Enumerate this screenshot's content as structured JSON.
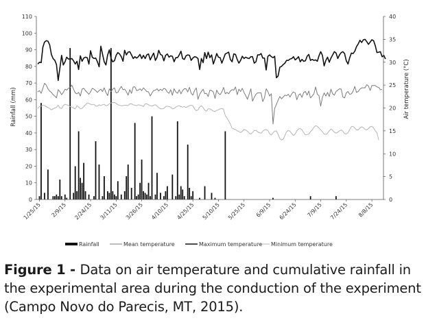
{
  "chart_data": {
    "type": "bar+line",
    "title": "",
    "xlabel": "",
    "ylabel_left": "Rainfall (mm)",
    "ylabel_right": "Air temperature (°C)",
    "ylim_left": [
      0,
      110
    ],
    "ylim_right": [
      0,
      40
    ],
    "yticks_left": [
      "0",
      "10",
      "20",
      "30",
      "40",
      "50",
      "60",
      "70",
      "80",
      "90",
      "100",
      "110"
    ],
    "yticks_right": [
      "0",
      "5",
      "10",
      "15",
      "20",
      "25",
      "30",
      "35",
      "40"
    ],
    "x_tick_labels": [
      "1/25/15",
      "2/9/15",
      "2/24/15",
      "3/11/15",
      "3/26/15",
      "4/10/15",
      "4/25/15",
      "5/10/15",
      "5/25/15",
      "6/9/15",
      "6/24/15",
      "7/9/15",
      "7/24/15",
      "8/8/15"
    ],
    "x_start": "1/25/15",
    "n_days": 203,
    "rainfall": {
      "name": "Rainfall",
      "values": [
        [
          1,
          2
        ],
        [
          2,
          58
        ],
        [
          4,
          4
        ],
        [
          6,
          18
        ],
        [
          9,
          2
        ],
        [
          10,
          2
        ],
        [
          11,
          3
        ],
        [
          12,
          2
        ],
        [
          13,
          12
        ],
        [
          14,
          2
        ],
        [
          16,
          3
        ],
        [
          17,
          1
        ],
        [
          19,
          91
        ],
        [
          21,
          4
        ],
        [
          22,
          20
        ],
        [
          23,
          5
        ],
        [
          24,
          41
        ],
        [
          25,
          13
        ],
        [
          26,
          10
        ],
        [
          27,
          22
        ],
        [
          28,
          5
        ],
        [
          30,
          3
        ],
        [
          33,
          2
        ],
        [
          34,
          35
        ],
        [
          36,
          21
        ],
        [
          38,
          2
        ],
        [
          39,
          14
        ],
        [
          41,
          5
        ],
        [
          42,
          4
        ],
        [
          43,
          91
        ],
        [
          44,
          5
        ],
        [
          45,
          3
        ],
        [
          46,
          2
        ],
        [
          47,
          11
        ],
        [
          49,
          3
        ],
        [
          51,
          5
        ],
        [
          52,
          14
        ],
        [
          53,
          21
        ],
        [
          55,
          7
        ],
        [
          57,
          46
        ],
        [
          58,
          2
        ],
        [
          59,
          3
        ],
        [
          60,
          10
        ],
        [
          61,
          24
        ],
        [
          62,
          5
        ],
        [
          63,
          4
        ],
        [
          64,
          3
        ],
        [
          65,
          10
        ],
        [
          66,
          2
        ],
        [
          67,
          50
        ],
        [
          69,
          3
        ],
        [
          70,
          16
        ],
        [
          72,
          4
        ],
        [
          74,
          2
        ],
        [
          75,
          5
        ],
        [
          76,
          8
        ],
        [
          79,
          15
        ],
        [
          81,
          2
        ],
        [
          82,
          47
        ],
        [
          83,
          3
        ],
        [
          84,
          8
        ],
        [
          85,
          6
        ],
        [
          86,
          2
        ],
        [
          88,
          33
        ],
        [
          89,
          7
        ],
        [
          90,
          2
        ],
        [
          91,
          5
        ],
        [
          95,
          1
        ],
        [
          98,
          8
        ],
        [
          102,
          4
        ],
        [
          104,
          1
        ],
        [
          110,
          41
        ],
        [
          138,
          1
        ],
        [
          160,
          2
        ],
        [
          175,
          2
        ]
      ]
    },
    "series": [
      {
        "name": "Mean temperature",
        "axis": "right",
        "color": "#7a7a7a",
        "values": [
          23.5,
          23.8,
          23.2,
          24.3,
          25.4,
          25.0,
          24.2,
          23.7,
          23.4,
          22.9,
          22.6,
          22.2,
          24.0,
          23.6,
          22.9,
          23.4,
          24.1,
          23.9,
          24.3,
          24.5,
          25.0,
          24.1,
          23.3,
          23.1,
          23.4,
          22.6,
          24.1,
          24.3,
          23.8,
          23.4,
          23.0,
          23.5,
          24.3,
          24.1,
          23.8,
          23.4,
          23.8,
          24.1,
          23.6,
          24.4,
          23.4,
          22.7,
          24.2,
          23.6,
          24.1,
          24.4,
          23.3,
          23.4,
          24.1,
          24.7,
          24.0,
          24.1,
          23.6,
          22.8,
          24.0,
          23.2,
          24.6,
          24.6,
          23.8,
          23.9,
          24.2,
          23.8,
          24.4,
          24.0,
          23.6,
          23.5,
          22.6,
          23.3,
          23.8,
          23.9,
          24.2,
          23.7,
          24.1,
          23.8,
          24.3,
          24.1,
          23.5,
          23.2,
          24.0,
          22.8,
          24.2,
          23.5,
          23.2,
          24.0,
          23.1,
          23.8,
          24.2,
          24.2,
          23.5,
          24.5,
          23.2,
          22.8,
          23.8,
          24.4,
          21.9,
          23.0,
          23.6,
          24.1,
          23.1,
          23.2,
          22.5,
          23.9,
          23.8,
          23.5,
          22.1,
          23.9,
          23.2,
          22.9,
          23.5,
          24.5,
          23.1,
          23.4,
          23.1,
          23.7,
          24.0,
          23.9,
          24.6,
          22.9,
          24.1,
          23.6,
          24.3,
          23.4,
          22.7,
          21.9,
          23.0,
          24.2,
          21.5,
          22.3,
          23.0,
          23.3,
          23.3,
          23.3,
          21.4,
          22.2,
          24.2,
          23.6,
          22.6,
          23.1,
          16.5,
          19.9,
          20.8,
          21.7,
          22.5,
          22.0,
          22.4,
          22.8,
          22.7,
          23.0,
          22.4,
          23.1,
          23.5,
          23.3,
          21.8,
          22.8,
          23.1,
          22.3,
          23.4,
          23.6,
          22.8,
          23.7,
          22.2,
          22.6,
          23.1,
          24.6,
          23.0,
          22.7,
          20.4,
          22.3,
          23.3,
          22.6,
          23.4,
          22.5,
          24.1,
          23.1,
          22.8,
          23.6,
          23.9,
          24.2,
          24.1,
          22.4,
          22.2,
          23.3,
          23.6,
          23.0,
          23.1,
          23.7,
          24.7,
          23.4,
          23.6,
          24.1,
          24.4,
          24.4,
          24.4,
          25.1,
          24.8,
          23.8,
          24.9,
          24.9,
          24.9,
          24.6,
          24.5,
          24.0,
          24.0
        ]
      },
      {
        "name": "Maximum temperature",
        "axis": "right",
        "color": "#111111",
        "values": [
          29.6,
          30.0,
          29.9,
          33.3,
          34.4,
          34.7,
          34.6,
          33.8,
          31.7,
          30.8,
          30.4,
          29.5,
          26.0,
          28.7,
          31.5,
          29.4,
          30.1,
          31.1,
          30.7,
          30.7,
          30.8,
          30.3,
          29.6,
          30.2,
          28.4,
          31.4,
          30.2,
          30.9,
          31.1,
          31.0,
          29.6,
          32.5,
          31.1,
          30.8,
          30.9,
          30.1,
          29.0,
          33.5,
          31.8,
          30.1,
          29.4,
          31.6,
          32.7,
          30.8,
          30.1,
          30.3,
          31.5,
          32.1,
          31.8,
          31.2,
          30.2,
          32.6,
          31.6,
          32.2,
          32.3,
          31.6,
          30.8,
          31.2,
          30.9,
          31.2,
          31.7,
          30.8,
          31.5,
          30.8,
          31.6,
          31.8,
          30.5,
          31.3,
          32.0,
          30.4,
          31.1,
          32.6,
          31.7,
          31.5,
          30.3,
          31.5,
          31.8,
          31.1,
          31.4,
          31.3,
          30.1,
          31.0,
          31.0,
          31.6,
          32.4,
          30.8,
          30.6,
          31.4,
          31.6,
          31.5,
          30.4,
          30.9,
          31.2,
          31.1,
          30.8,
          28.4,
          30.8,
          29.9,
          32.1,
          30.8,
          32.2,
          31.0,
          31.6,
          29.6,
          30.7,
          31.9,
          31.1,
          31.0,
          29.8,
          30.8,
          31.8,
          32.0,
          32.2,
          30.6,
          30.1,
          31.8,
          31.7,
          30.6,
          29.8,
          30.4,
          31.3,
          30.8,
          31.1,
          30.9,
          30.8,
          31.2,
          31.2,
          29.8,
          30.1,
          31.6,
          31.6,
          31.9,
          30.9,
          30.9,
          28.3,
          31.3,
          31.6,
          31.2,
          31.0,
          31.3,
          26.6,
          27.0,
          28.9,
          29.1,
          29.5,
          29.8,
          30.4,
          30.4,
          30.7,
          30.8,
          31.2,
          30.5,
          30.8,
          31.2,
          30.1,
          30.6,
          30.2,
          30.3,
          31.3,
          31.7,
          30.4,
          30.6,
          30.4,
          30.5,
          30.2,
          31.4,
          32.3,
          31.5,
          29.2,
          30.4,
          31.1,
          30.0,
          30.9,
          31.6,
          32.3,
          32.0,
          30.8,
          31.6,
          32.1,
          32.3,
          31.9,
          30.3,
          29.6,
          31.0,
          32.0,
          31.9,
          32.4,
          33.4,
          34.0,
          34.8,
          34.3,
          34.9,
          35.0,
          34.5,
          33.9,
          34.4,
          34.9,
          34.7,
          33.6,
          32.1,
          32.2,
          32.3,
          31.2,
          31.5,
          30.7
        ]
      },
      {
        "name": "Minimum temperature",
        "axis": "right",
        "color": "#b4b4b4",
        "values": [
          19.9,
          20.3,
          20.4,
          20.6,
          20.5,
          20.3,
          20.1,
          19.9,
          19.6,
          19.8,
          20.0,
          20.1,
          20.6,
          20.0,
          19.9,
          20.5,
          20.8,
          20.7,
          20.6,
          20.3,
          20.2,
          20.0,
          19.8,
          20.5,
          20.2,
          19.8,
          19.9,
          20.3,
          20.7,
          21.1,
          21.0,
          20.8,
          20.7,
          20.8,
          20.4,
          20.4,
          20.7,
          20.5,
          20.7,
          20.8,
          20.5,
          20.6,
          20.9,
          21.1,
          21.2,
          21.2,
          21.0,
          20.7,
          20.6,
          20.5,
          20.5,
          20.6,
          20.6,
          20.5,
          20.9,
          20.9,
          20.7,
          20.6,
          20.5,
          20.7,
          20.6,
          20.5,
          20.3,
          20.9,
          20.9,
          20.7,
          20.5,
          20.4,
          20.6,
          20.7,
          20.4,
          20.1,
          19.8,
          19.8,
          19.9,
          20.3,
          20.4,
          20.3,
          20.2,
          19.8,
          19.9,
          20.2,
          20.4,
          20.5,
          20.3,
          20.2,
          20.3,
          20.1,
          20.3,
          20.5,
          20.6,
          20.5,
          19.8,
          19.4,
          19.6,
          20.2,
          20.5,
          20.1,
          19.5,
          19.3,
          19.8,
          19.8,
          19.6,
          19.3,
          19.2,
          19.5,
          19.6,
          19.8,
          19.9,
          19.7,
          18.3,
          17.8,
          17.2,
          16.5,
          15.6,
          15.4,
          15.3,
          15.0,
          14.9,
          14.6,
          14.9,
          15.3,
          15.2,
          14.9,
          14.5,
          14.3,
          14.6,
          15.1,
          15.1,
          14.8,
          14.6,
          14.5,
          14.9,
          15.2,
          15.3,
          15.1,
          14.4,
          14.1,
          14.6,
          14.9,
          15.0,
          14.2,
          13.3,
          13.0,
          13.2,
          14.0,
          14.8,
          15.1,
          14.9,
          14.4,
          14.0,
          14.3,
          15.0,
          15.4,
          15.5,
          15.2,
          14.6,
          14.1,
          14.2,
          14.3,
          14.8,
          15.2,
          15.8,
          16.1,
          16.0,
          15.6,
          15.2,
          14.8,
          14.3,
          14.2,
          14.5,
          15.0,
          15.4,
          15.1,
          14.7,
          14.5,
          14.7,
          15.0,
          15.2,
          14.9,
          14.4,
          14.3,
          14.6,
          15.3,
          15.9,
          16.0,
          15.6,
          15.2,
          15.2,
          15.6,
          15.9,
          15.7,
          15.3,
          15.2,
          15.5,
          15.9,
          16.0,
          15.6,
          15.0,
          14.6,
          13.0
        ]
      }
    ],
    "legend": [
      "Rainfall",
      "Mean temperature",
      "Maximum temperature",
      "Minimum temperature"
    ],
    "legend_position": "bottom"
  },
  "caption": {
    "label": "Figure 1 - ",
    "text": "Data on air temperature and cumulative rainfall in the experimental area during the conduction of the experiment (Campo Novo do Parecis, MT, 2015)."
  }
}
